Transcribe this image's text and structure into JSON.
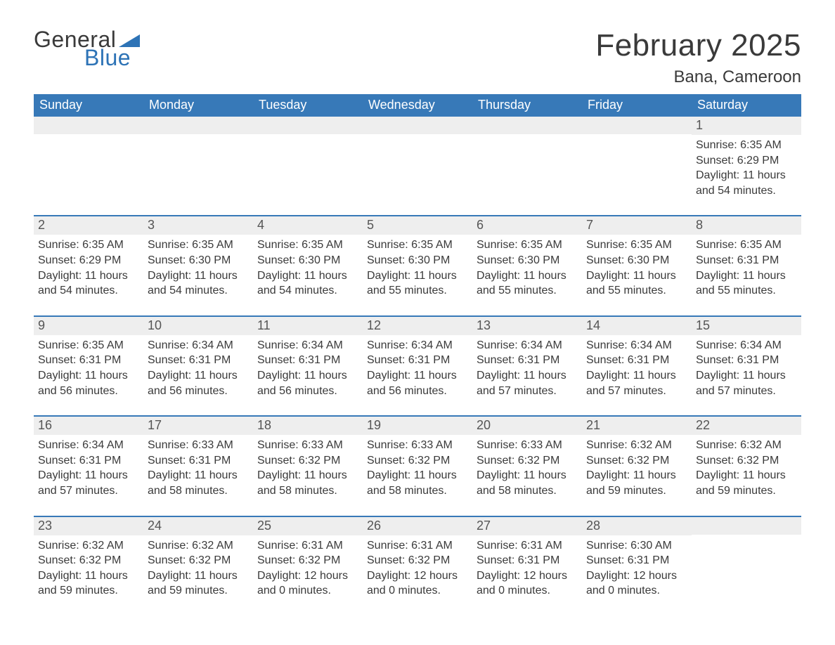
{
  "logo": {
    "text_general": "General",
    "text_blue": "Blue",
    "flag_color": "#2d73b6"
  },
  "title": "February 2025",
  "location": "Bana, Cameroon",
  "colors": {
    "header_bar": "#3779b8",
    "header_text": "#ffffff",
    "daynum_bg": "#eeeeee",
    "row_divider": "#3779b8",
    "body_text": "#3a3a3a",
    "background": "#ffffff"
  },
  "typography": {
    "title_fontsize": 44,
    "location_fontsize": 24,
    "weekday_fontsize": 18,
    "daynum_fontsize": 18,
    "detail_fontsize": 16,
    "font_family": "Arial"
  },
  "weekdays": [
    "Sunday",
    "Monday",
    "Tuesday",
    "Wednesday",
    "Thursday",
    "Friday",
    "Saturday"
  ],
  "weeks": [
    [
      null,
      null,
      null,
      null,
      null,
      null,
      {
        "n": "1",
        "sunrise": "Sunrise: 6:35 AM",
        "sunset": "Sunset: 6:29 PM",
        "daylight": "Daylight: 11 hours and 54 minutes."
      }
    ],
    [
      {
        "n": "2",
        "sunrise": "Sunrise: 6:35 AM",
        "sunset": "Sunset: 6:29 PM",
        "daylight": "Daylight: 11 hours and 54 minutes."
      },
      {
        "n": "3",
        "sunrise": "Sunrise: 6:35 AM",
        "sunset": "Sunset: 6:30 PM",
        "daylight": "Daylight: 11 hours and 54 minutes."
      },
      {
        "n": "4",
        "sunrise": "Sunrise: 6:35 AM",
        "sunset": "Sunset: 6:30 PM",
        "daylight": "Daylight: 11 hours and 54 minutes."
      },
      {
        "n": "5",
        "sunrise": "Sunrise: 6:35 AM",
        "sunset": "Sunset: 6:30 PM",
        "daylight": "Daylight: 11 hours and 55 minutes."
      },
      {
        "n": "6",
        "sunrise": "Sunrise: 6:35 AM",
        "sunset": "Sunset: 6:30 PM",
        "daylight": "Daylight: 11 hours and 55 minutes."
      },
      {
        "n": "7",
        "sunrise": "Sunrise: 6:35 AM",
        "sunset": "Sunset: 6:30 PM",
        "daylight": "Daylight: 11 hours and 55 minutes."
      },
      {
        "n": "8",
        "sunrise": "Sunrise: 6:35 AM",
        "sunset": "Sunset: 6:31 PM",
        "daylight": "Daylight: 11 hours and 55 minutes."
      }
    ],
    [
      {
        "n": "9",
        "sunrise": "Sunrise: 6:35 AM",
        "sunset": "Sunset: 6:31 PM",
        "daylight": "Daylight: 11 hours and 56 minutes."
      },
      {
        "n": "10",
        "sunrise": "Sunrise: 6:34 AM",
        "sunset": "Sunset: 6:31 PM",
        "daylight": "Daylight: 11 hours and 56 minutes."
      },
      {
        "n": "11",
        "sunrise": "Sunrise: 6:34 AM",
        "sunset": "Sunset: 6:31 PM",
        "daylight": "Daylight: 11 hours and 56 minutes."
      },
      {
        "n": "12",
        "sunrise": "Sunrise: 6:34 AM",
        "sunset": "Sunset: 6:31 PM",
        "daylight": "Daylight: 11 hours and 56 minutes."
      },
      {
        "n": "13",
        "sunrise": "Sunrise: 6:34 AM",
        "sunset": "Sunset: 6:31 PM",
        "daylight": "Daylight: 11 hours and 57 minutes."
      },
      {
        "n": "14",
        "sunrise": "Sunrise: 6:34 AM",
        "sunset": "Sunset: 6:31 PM",
        "daylight": "Daylight: 11 hours and 57 minutes."
      },
      {
        "n": "15",
        "sunrise": "Sunrise: 6:34 AM",
        "sunset": "Sunset: 6:31 PM",
        "daylight": "Daylight: 11 hours and 57 minutes."
      }
    ],
    [
      {
        "n": "16",
        "sunrise": "Sunrise: 6:34 AM",
        "sunset": "Sunset: 6:31 PM",
        "daylight": "Daylight: 11 hours and 57 minutes."
      },
      {
        "n": "17",
        "sunrise": "Sunrise: 6:33 AM",
        "sunset": "Sunset: 6:31 PM",
        "daylight": "Daylight: 11 hours and 58 minutes."
      },
      {
        "n": "18",
        "sunrise": "Sunrise: 6:33 AM",
        "sunset": "Sunset: 6:32 PM",
        "daylight": "Daylight: 11 hours and 58 minutes."
      },
      {
        "n": "19",
        "sunrise": "Sunrise: 6:33 AM",
        "sunset": "Sunset: 6:32 PM",
        "daylight": "Daylight: 11 hours and 58 minutes."
      },
      {
        "n": "20",
        "sunrise": "Sunrise: 6:33 AM",
        "sunset": "Sunset: 6:32 PM",
        "daylight": "Daylight: 11 hours and 58 minutes."
      },
      {
        "n": "21",
        "sunrise": "Sunrise: 6:32 AM",
        "sunset": "Sunset: 6:32 PM",
        "daylight": "Daylight: 11 hours and 59 minutes."
      },
      {
        "n": "22",
        "sunrise": "Sunrise: 6:32 AM",
        "sunset": "Sunset: 6:32 PM",
        "daylight": "Daylight: 11 hours and 59 minutes."
      }
    ],
    [
      {
        "n": "23",
        "sunrise": "Sunrise: 6:32 AM",
        "sunset": "Sunset: 6:32 PM",
        "daylight": "Daylight: 11 hours and 59 minutes."
      },
      {
        "n": "24",
        "sunrise": "Sunrise: 6:32 AM",
        "sunset": "Sunset: 6:32 PM",
        "daylight": "Daylight: 11 hours and 59 minutes."
      },
      {
        "n": "25",
        "sunrise": "Sunrise: 6:31 AM",
        "sunset": "Sunset: 6:32 PM",
        "daylight": "Daylight: 12 hours and 0 minutes."
      },
      {
        "n": "26",
        "sunrise": "Sunrise: 6:31 AM",
        "sunset": "Sunset: 6:32 PM",
        "daylight": "Daylight: 12 hours and 0 minutes."
      },
      {
        "n": "27",
        "sunrise": "Sunrise: 6:31 AM",
        "sunset": "Sunset: 6:31 PM",
        "daylight": "Daylight: 12 hours and 0 minutes."
      },
      {
        "n": "28",
        "sunrise": "Sunrise: 6:30 AM",
        "sunset": "Sunset: 6:31 PM",
        "daylight": "Daylight: 12 hours and 0 minutes."
      },
      null
    ]
  ]
}
